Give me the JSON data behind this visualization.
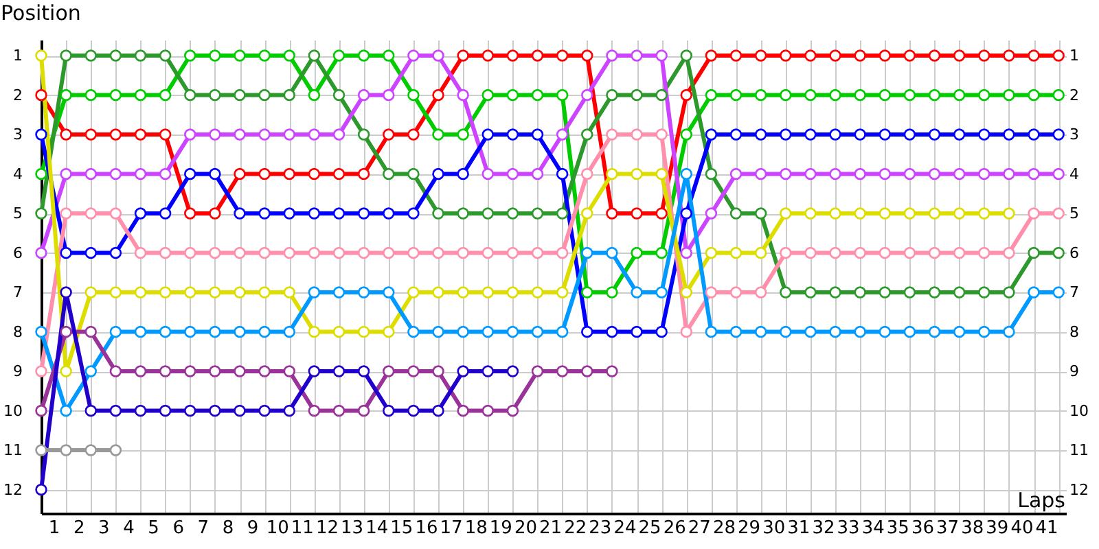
{
  "chart_data": {
    "type": "line",
    "xlabel": "Laps",
    "ylabel": "Position",
    "marker": "circle",
    "grid": true,
    "legend": false,
    "x": [
      0,
      1,
      2,
      3,
      4,
      5,
      6,
      7,
      8,
      9,
      10,
      11,
      12,
      13,
      14,
      15,
      16,
      17,
      18,
      19,
      20,
      21,
      22,
      23,
      24,
      25,
      26,
      27,
      28,
      29,
      30,
      31,
      32,
      33,
      34,
      35,
      36,
      37,
      38,
      39,
      40,
      41
    ],
    "xlim": [
      0,
      41.3
    ],
    "xticks": [
      {
        "value": 0,
        "label": null
      },
      {
        "value": 0.5,
        "label": "1"
      },
      {
        "value": 1,
        "label": null
      },
      {
        "value": 1.5,
        "label": "2"
      },
      {
        "value": 2,
        "label": null
      },
      {
        "value": 2.5,
        "label": "3"
      },
      {
        "value": 3,
        "label": null
      },
      {
        "value": 3.5,
        "label": "4"
      },
      {
        "value": 4,
        "label": null
      },
      {
        "value": 4.5,
        "label": "5"
      },
      {
        "value": 5,
        "label": null
      },
      {
        "value": 5.5,
        "label": "6"
      },
      {
        "value": 6,
        "label": null
      },
      {
        "value": 6.5,
        "label": "7"
      },
      {
        "value": 7,
        "label": null
      },
      {
        "value": 7.5,
        "label": "8"
      },
      {
        "value": 8,
        "label": null
      },
      {
        "value": 8.5,
        "label": "9"
      },
      {
        "value": 9,
        "label": null
      },
      {
        "value": 9.5,
        "label": "10"
      },
      {
        "value": 10,
        "label": null
      },
      {
        "value": 10.5,
        "label": "11"
      },
      {
        "value": 11,
        "label": null
      },
      {
        "value": 11.5,
        "label": "12"
      },
      {
        "value": 12,
        "label": null
      },
      {
        "value": 12.5,
        "label": "13"
      },
      {
        "value": 13,
        "label": null
      },
      {
        "value": 13.5,
        "label": "14"
      },
      {
        "value": 14,
        "label": null
      },
      {
        "value": 14.5,
        "label": "15"
      },
      {
        "value": 15,
        "label": null
      },
      {
        "value": 15.5,
        "label": "16"
      },
      {
        "value": 16,
        "label": null
      },
      {
        "value": 16.5,
        "label": "17"
      },
      {
        "value": 17,
        "label": null
      },
      {
        "value": 17.5,
        "label": "18"
      },
      {
        "value": 18,
        "label": null
      },
      {
        "value": 18.5,
        "label": "19"
      },
      {
        "value": 19,
        "label": null
      },
      {
        "value": 19.5,
        "label": "20"
      },
      {
        "value": 20,
        "label": null
      },
      {
        "value": 20.5,
        "label": "21"
      },
      {
        "value": 21,
        "label": null
      },
      {
        "value": 21.5,
        "label": "22"
      },
      {
        "value": 22,
        "label": null
      },
      {
        "value": 22.5,
        "label": "23"
      },
      {
        "value": 23,
        "label": null
      },
      {
        "value": 23.5,
        "label": "24"
      },
      {
        "value": 24,
        "label": null
      },
      {
        "value": 24.5,
        "label": "25"
      },
      {
        "value": 25,
        "label": null
      },
      {
        "value": 25.5,
        "label": "26"
      },
      {
        "value": 26,
        "label": null
      },
      {
        "value": 26.5,
        "label": "27"
      },
      {
        "value": 27,
        "label": null
      },
      {
        "value": 27.5,
        "label": "28"
      },
      {
        "value": 28,
        "label": null
      },
      {
        "value": 28.5,
        "label": "29"
      },
      {
        "value": 29,
        "label": null
      },
      {
        "value": 29.5,
        "label": "30"
      },
      {
        "value": 30,
        "label": null
      },
      {
        "value": 30.5,
        "label": "31"
      },
      {
        "value": 31,
        "label": null
      },
      {
        "value": 31.5,
        "label": "32"
      },
      {
        "value": 32,
        "label": null
      },
      {
        "value": 32.5,
        "label": "33"
      },
      {
        "value": 33,
        "label": null
      },
      {
        "value": 33.5,
        "label": "34"
      },
      {
        "value": 34,
        "label": null
      },
      {
        "value": 34.5,
        "label": "35"
      },
      {
        "value": 35,
        "label": null
      },
      {
        "value": 35.5,
        "label": "36"
      },
      {
        "value": 36,
        "label": null
      },
      {
        "value": 36.5,
        "label": "37"
      },
      {
        "value": 37,
        "label": null
      },
      {
        "value": 37.5,
        "label": "38"
      },
      {
        "value": 38,
        "label": null
      },
      {
        "value": 38.5,
        "label": "39"
      },
      {
        "value": 39,
        "label": null
      },
      {
        "value": 39.5,
        "label": "40"
      },
      {
        "value": 40,
        "label": null
      },
      {
        "value": 40.5,
        "label": "41"
      },
      {
        "value": 41,
        "label": null
      }
    ],
    "ylim": [
      12.6,
      0.6
    ],
    "yticks": [
      1,
      2,
      3,
      4,
      5,
      6,
      7,
      8,
      9,
      10,
      11,
      12
    ],
    "y2lim": [
      12.6,
      0.6
    ],
    "y2ticks": [
      1,
      2,
      3,
      4,
      5,
      6,
      7,
      8,
      9,
      10,
      11,
      12
    ],
    "series": [
      {
        "color": "#ff0000",
        "values": [
          2,
          3,
          3,
          3,
          3,
          3,
          5,
          5,
          4,
          4,
          4,
          4,
          4,
          4,
          3,
          3,
          2,
          1,
          1,
          1,
          1,
          1,
          1,
          5,
          5,
          5,
          2,
          1,
          1,
          1,
          1,
          1,
          1,
          1,
          1,
          1,
          1,
          1,
          1,
          1,
          1,
          1
        ]
      },
      {
        "color": "#00cc00",
        "values": [
          4,
          2,
          2,
          2,
          2,
          2,
          1,
          1,
          1,
          1,
          1,
          2,
          1,
          1,
          1,
          2,
          3,
          3,
          2,
          2,
          2,
          2,
          7,
          7,
          6,
          6,
          3,
          2,
          2,
          2,
          2,
          2,
          2,
          2,
          2,
          2,
          2,
          2,
          2,
          2,
          2,
          2
        ]
      },
      {
        "color": "#2d992d",
        "values": [
          5,
          1,
          1,
          1,
          1,
          1,
          2,
          2,
          2,
          2,
          2,
          1,
          2,
          3,
          4,
          4,
          5,
          5,
          5,
          5,
          5,
          5,
          3,
          2,
          2,
          2,
          1,
          4,
          5,
          5,
          7,
          7,
          7,
          7,
          7,
          7,
          7,
          7,
          7,
          7,
          6,
          6
        ]
      },
      {
        "color": "#cc44ff",
        "values": [
          6,
          4,
          4,
          4,
          4,
          4,
          3,
          3,
          3,
          3,
          3,
          3,
          3,
          2,
          2,
          1,
          1,
          2,
          4,
          4,
          4,
          3,
          2,
          1,
          1,
          1,
          6,
          5,
          4,
          4,
          4,
          4,
          4,
          4,
          4,
          4,
          4,
          4,
          4,
          4,
          4,
          4
        ]
      },
      {
        "color": "#0000ff",
        "values": [
          3,
          6,
          6,
          6,
          5,
          5,
          4,
          4,
          5,
          5,
          5,
          5,
          5,
          5,
          5,
          5,
          4,
          4,
          3,
          3,
          3,
          4,
          8,
          8,
          8,
          8,
          5,
          3,
          3,
          3,
          3,
          3,
          3,
          3,
          3,
          3,
          3,
          3,
          3,
          3,
          3,
          3
        ]
      },
      {
        "color": "#ff8fab",
        "values": [
          9,
          5,
          5,
          5,
          6,
          6,
          6,
          6,
          6,
          6,
          6,
          6,
          6,
          6,
          6,
          6,
          6,
          6,
          6,
          6,
          6,
          6,
          4,
          3,
          3,
          3,
          8,
          7,
          7,
          7,
          6,
          6,
          6,
          6,
          6,
          6,
          6,
          6,
          6,
          6,
          5,
          5
        ]
      },
      {
        "color": "#dddd00",
        "values": [
          1,
          9,
          7,
          7,
          7,
          7,
          7,
          7,
          7,
          7,
          7,
          8,
          8,
          8,
          8,
          7,
          7,
          7,
          7,
          7,
          7,
          7,
          5,
          4,
          4,
          4,
          7,
          6,
          6,
          6,
          5,
          5,
          5,
          5,
          5,
          5,
          5,
          5,
          5,
          5,
          null,
          null
        ]
      },
      {
        "color": "#0099ff",
        "values": [
          8,
          10,
          9,
          8,
          8,
          8,
          8,
          8,
          8,
          8,
          8,
          7,
          7,
          7,
          7,
          8,
          8,
          8,
          8,
          8,
          8,
          8,
          6,
          6,
          7,
          7,
          4,
          8,
          8,
          8,
          8,
          8,
          8,
          8,
          8,
          8,
          8,
          8,
          8,
          8,
          7,
          7
        ]
      },
      {
        "color": "#993399",
        "values": [
          10,
          8,
          8,
          9,
          9,
          9,
          9,
          9,
          9,
          9,
          9,
          10,
          10,
          10,
          9,
          9,
          9,
          10,
          10,
          10,
          9,
          9,
          9,
          9,
          null,
          null,
          null,
          null,
          null,
          null,
          null,
          null,
          null,
          null,
          null,
          null,
          null,
          null,
          null,
          null,
          null,
          null
        ]
      },
      {
        "color": "#2200cc",
        "values": [
          12,
          7,
          10,
          10,
          10,
          10,
          10,
          10,
          10,
          10,
          10,
          9,
          9,
          9,
          10,
          10,
          10,
          9,
          9,
          9,
          null,
          null,
          null,
          null,
          null,
          null,
          null,
          null,
          null,
          null,
          null,
          null,
          null,
          null,
          null,
          null,
          null,
          null,
          null,
          null,
          null,
          null
        ]
      },
      {
        "color": "#999999",
        "values": [
          11,
          11,
          11,
          11,
          null,
          null,
          null,
          null,
          null,
          null,
          null,
          null,
          null,
          null,
          null,
          null,
          null,
          null,
          null,
          null,
          null,
          null,
          null,
          null,
          null,
          null,
          null,
          null,
          null,
          null,
          null,
          null,
          null,
          null,
          null,
          null,
          null,
          null,
          null,
          null,
          null,
          null
        ]
      }
    ]
  }
}
